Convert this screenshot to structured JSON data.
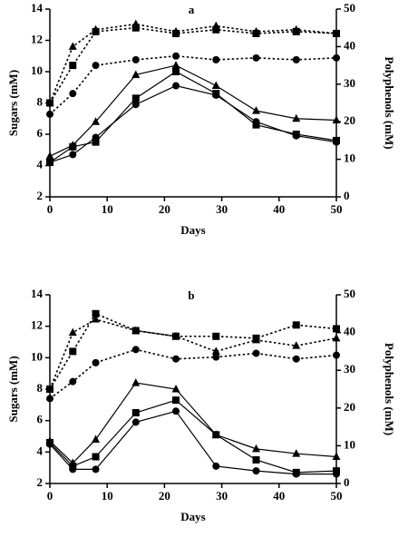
{
  "chart_data": [
    {
      "type": "line",
      "title": "a",
      "xlabel": "Days",
      "ylabel": "Sugars (mM)",
      "y2label": "Polyphenols (mM)",
      "x": [
        0,
        4,
        8,
        15,
        22,
        29,
        36,
        43,
        50
      ],
      "xlim": [
        0,
        50
      ],
      "xticks": [
        0,
        10,
        20,
        30,
        40,
        50
      ],
      "ylim": [
        2,
        14
      ],
      "yticks": [
        2,
        4,
        6,
        8,
        10,
        12,
        14
      ],
      "y2lim": [
        0,
        50
      ],
      "y2ticks": [
        0,
        10,
        20,
        30,
        40,
        50
      ],
      "series": [
        {
          "color": "#000000",
          "marker": "triangle",
          "dash": false,
          "values": [
            4.6,
            5.3,
            6.8,
            9.8,
            10.4,
            9.1,
            7.5,
            7.0,
            6.9
          ]
        },
        {
          "color": "#000000",
          "marker": "square",
          "dash": false,
          "values": [
            4.2,
            5.2,
            5.5,
            8.3,
            10.0,
            8.6,
            6.6,
            6.0,
            5.6
          ]
        },
        {
          "color": "#000000",
          "marker": "circle",
          "dash": false,
          "values": [
            4.2,
            4.7,
            5.8,
            7.9,
            9.1,
            8.5,
            6.8,
            5.9,
            5.5
          ]
        },
        {
          "color": "#000000",
          "marker": "triangle",
          "dash": true,
          "axis": "y2",
          "values": [
            25,
            40,
            44.5,
            46,
            44,
            45.5,
            44,
            44.5,
            43.5
          ]
        },
        {
          "color": "#000000",
          "marker": "square",
          "dash": true,
          "axis": "y2",
          "values": [
            25,
            35,
            44,
            45,
            43.5,
            44.5,
            43.5,
            44,
            43.5
          ]
        },
        {
          "color": "#000000",
          "marker": "circle",
          "dash": true,
          "axis": "y2",
          "values": [
            22,
            27.5,
            35,
            36.5,
            37.5,
            36.5,
            37,
            36.5,
            37
          ]
        }
      ]
    },
    {
      "type": "line",
      "title": "b",
      "xlabel": "Days",
      "ylabel": "Sugars (mM)",
      "y2label": "Polyphenols (mM)",
      "x": [
        0,
        4,
        8,
        15,
        22,
        29,
        36,
        43,
        50
      ],
      "xlim": [
        0,
        50
      ],
      "xticks": [
        0,
        10,
        20,
        30,
        40,
        50
      ],
      "ylim": [
        2,
        14
      ],
      "yticks": [
        2,
        4,
        6,
        8,
        10,
        12,
        14
      ],
      "y2lim": [
        0,
        50
      ],
      "y2ticks": [
        0,
        10,
        20,
        30,
        40,
        50
      ],
      "series": [
        {
          "color": "#000000",
          "marker": "triangle",
          "dash": false,
          "values": [
            4.7,
            3.3,
            4.8,
            8.4,
            8.0,
            5.1,
            4.2,
            3.9,
            3.7
          ]
        },
        {
          "color": "#000000",
          "marker": "square",
          "dash": false,
          "values": [
            4.6,
            3.1,
            3.7,
            6.5,
            7.3,
            5.1,
            3.5,
            2.7,
            2.8
          ]
        },
        {
          "color": "#000000",
          "marker": "circle",
          "dash": false,
          "values": [
            4.5,
            2.9,
            2.9,
            5.9,
            6.6,
            3.1,
            2.8,
            2.6,
            2.6
          ]
        },
        {
          "color": "#000000",
          "marker": "square",
          "dash": true,
          "axis": "y2",
          "values": [
            25,
            35,
            45,
            40.5,
            39,
            39,
            38.5,
            42,
            41
          ]
        },
        {
          "color": "#000000",
          "marker": "triangle",
          "dash": true,
          "axis": "y2",
          "values": [
            25,
            40,
            43.5,
            40.5,
            39,
            35,
            38,
            36.5,
            38.5
          ]
        },
        {
          "color": "#000000",
          "marker": "circle",
          "dash": true,
          "axis": "y2",
          "values": [
            22.5,
            27,
            32,
            35.5,
            33,
            33.5,
            34.5,
            33,
            34
          ]
        }
      ]
    }
  ]
}
